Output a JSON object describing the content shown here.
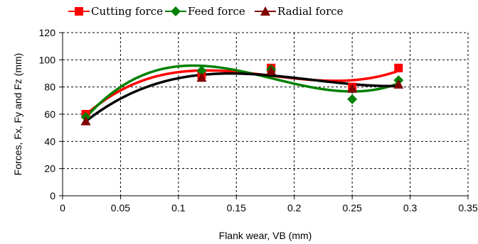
{
  "chart_data": {
    "type": "scatter",
    "title": "",
    "xlabel": "Flank wear, VB (mm)",
    "ylabel": "Forces, Fx, Fy and Fz (mm)",
    "xlim": [
      0,
      0.35
    ],
    "ylim": [
      0,
      120
    ],
    "x_ticks": [
      "0",
      "0.05",
      "0.1",
      "0.15",
      "0.2",
      "0.25",
      "0.3",
      "0.35"
    ],
    "y_ticks": [
      "0",
      "20",
      "40",
      "60",
      "80",
      "100",
      "120"
    ],
    "grid": true,
    "legend_position": "top",
    "x": [
      0.02,
      0.12,
      0.18,
      0.25,
      0.29
    ],
    "series": [
      {
        "name": "Cutting force",
        "color": "#ff0000",
        "marker": "square",
        "values": [
          60,
          89,
          94,
          80,
          94
        ],
        "trend_color": "#ff0000",
        "trend": "polynomial"
      },
      {
        "name": "Feed force",
        "color": "#008000",
        "marker": "diamond",
        "values": [
          58,
          92,
          93,
          71,
          85
        ],
        "trend_color": "#008000",
        "trend": "polynomial"
      },
      {
        "name": "Radial force",
        "color": "#800000",
        "marker": "triangle",
        "values": [
          55,
          87,
          92,
          79,
          82
        ],
        "trend_color": "#000000",
        "trend": "polynomial"
      }
    ]
  }
}
